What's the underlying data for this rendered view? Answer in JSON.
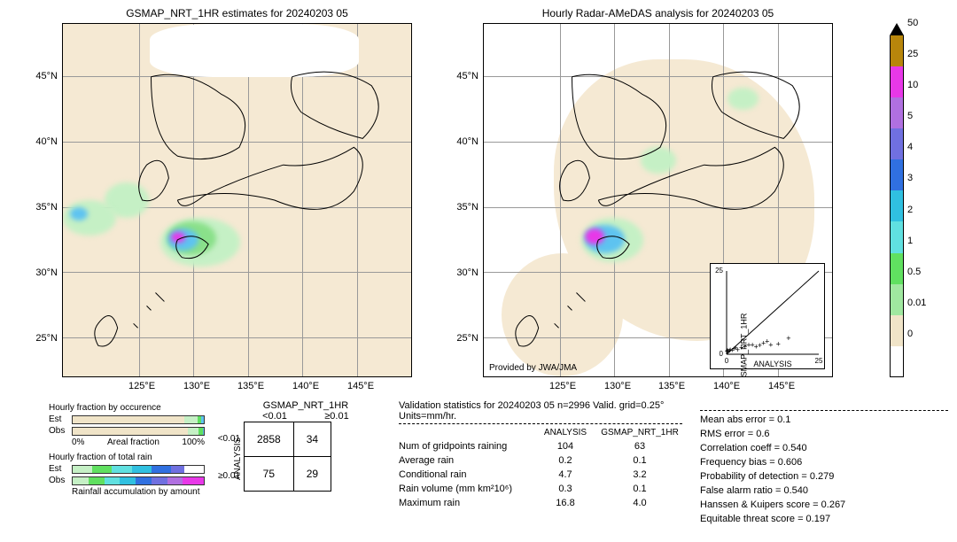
{
  "maps": {
    "left": {
      "title": "GSMAP_NRT_1HR estimates for 20240203 05"
    },
    "right": {
      "title": "Hourly Radar-AMeDAS analysis for 20240203 05",
      "provider": "Provided by JWA/JMA"
    },
    "lat_ticks": [
      "45°N",
      "40°N",
      "35°N",
      "30°N",
      "25°N"
    ],
    "lon_ticks": [
      "125°E",
      "130°E",
      "135°E",
      "140°E",
      "145°E"
    ],
    "xlim": [
      118,
      150
    ],
    "ylim": [
      22,
      49
    ],
    "background_color": "#f5e9d3",
    "grid_color": "#999999",
    "precip_clusters": [
      {
        "lat": 33,
        "lon": 129,
        "size": 60,
        "color": "#8ae08a"
      },
      {
        "lat": 33,
        "lon": 129,
        "size": 40,
        "color": "#5ec3f0"
      },
      {
        "lat": 33.2,
        "lon": 128.8,
        "size": 18,
        "color": "#e838e8"
      },
      {
        "lat": 31,
        "lon": 130,
        "size": 35,
        "color": "#c5f0c5"
      },
      {
        "lat": 34,
        "lon": 132,
        "size": 40,
        "color": "#c5f0c5"
      },
      {
        "lat": 37,
        "lon": 127,
        "size": 30,
        "color": "#c5f0c5"
      }
    ]
  },
  "colorbar": {
    "ticks": [
      "50",
      "25",
      "10",
      "5",
      "4",
      "3",
      "2",
      "1",
      "0.5",
      "0.01",
      "0"
    ],
    "colors": [
      "#b8860b",
      "#e838e8",
      "#b070e0",
      "#7070e0",
      "#3070e0",
      "#30c0e0",
      "#60e0e0",
      "#60e060",
      "#a0e8a0",
      "#f0e4c8",
      "#ffffff"
    ]
  },
  "hourly_fraction": {
    "occurrence": {
      "title": "Hourly fraction by occurence",
      "rows": [
        {
          "label": "Est",
          "segs": [
            {
              "w": 85,
              "c": "#f0e4c8"
            },
            {
              "w": 10,
              "c": "#c5f0c5"
            },
            {
              "w": 3,
              "c": "#60e060"
            },
            {
              "w": 2,
              "c": "#5ec3f0"
            }
          ]
        },
        {
          "label": "Obs",
          "segs": [
            {
              "w": 88,
              "c": "#f0e4c8"
            },
            {
              "w": 8,
              "c": "#c5f0c5"
            },
            {
              "w": 3,
              "c": "#60e060"
            },
            {
              "w": 1,
              "c": "#5ec3f0"
            }
          ]
        }
      ],
      "xaxis_left": "0%",
      "xaxis_right": "100%",
      "xaxis_label": "Areal fraction"
    },
    "total_rain": {
      "title": "Hourly fraction of total rain",
      "rows": [
        {
          "label": "Est",
          "segs": [
            {
              "w": 15,
              "c": "#c5f0c5"
            },
            {
              "w": 15,
              "c": "#60e060"
            },
            {
              "w": 15,
              "c": "#60e0e0"
            },
            {
              "w": 15,
              "c": "#30c0e0"
            },
            {
              "w": 15,
              "c": "#3070e0"
            },
            {
              "w": 10,
              "c": "#7070e0"
            }
          ]
        },
        {
          "label": "Obs",
          "segs": [
            {
              "w": 12,
              "c": "#c5f0c5"
            },
            {
              "w": 12,
              "c": "#60e060"
            },
            {
              "w": 12,
              "c": "#60e0e0"
            },
            {
              "w": 12,
              "c": "#30c0e0"
            },
            {
              "w": 12,
              "c": "#3070e0"
            },
            {
              "w": 12,
              "c": "#7070e0"
            },
            {
              "w": 12,
              "c": "#b070e0"
            },
            {
              "w": 16,
              "c": "#e838e8"
            }
          ]
        }
      ],
      "footer": "Rainfall accumulation by amount"
    }
  },
  "contingency": {
    "col_header": "GSMAP_NRT_1HR",
    "row_header": "ANALYSIS",
    "col_labels": [
      "<0.01",
      "≥0.01"
    ],
    "row_labels": [
      "<0.01",
      "≥0.01"
    ],
    "cells": [
      [
        "2858",
        "34"
      ],
      [
        "75",
        "29"
      ]
    ]
  },
  "validation": {
    "title": "Validation statistics for 20240203 05  n=2996 Valid. grid=0.25°  Units=mm/hr.",
    "col1": "ANALYSIS",
    "col2": "GSMAP_NRT_1HR",
    "rows": [
      {
        "label": "Num of gridpoints raining",
        "v1": "104",
        "v2": "63"
      },
      {
        "label": "Average rain",
        "v1": "0.2",
        "v2": "0.1"
      },
      {
        "label": "Conditional rain",
        "v1": "4.7",
        "v2": "3.2"
      },
      {
        "label": "Rain volume (mm km²10⁶)",
        "v1": "0.3",
        "v2": "0.1"
      },
      {
        "label": "Maximum rain",
        "v1": "16.8",
        "v2": "4.0"
      }
    ]
  },
  "metrics": {
    "rows": [
      {
        "label": "Mean abs error",
        "val": "0.1"
      },
      {
        "label": "RMS error",
        "val": "0.6"
      },
      {
        "label": "Correlation coeff",
        "val": "0.540"
      },
      {
        "label": "Frequency bias",
        "val": "0.606"
      },
      {
        "label": "Probability of detection",
        "val": "0.279"
      },
      {
        "label": "False alarm ratio",
        "val": "0.540"
      },
      {
        "label": "Hanssen & Kuipers score",
        "val": "0.267"
      },
      {
        "label": "Equitable threat score",
        "val": "0.197"
      }
    ]
  },
  "scatter": {
    "xlabel": "ANALYSIS",
    "ylabel": "GSMAP_NRT_1HR",
    "xlim": [
      0,
      25
    ],
    "ylim": [
      0,
      25
    ],
    "ticks": [
      0,
      5,
      10,
      15,
      20,
      25
    ],
    "points": [
      [
        0.2,
        0.1
      ],
      [
        0.3,
        0.2
      ],
      [
        0.5,
        0.1
      ],
      [
        0.8,
        0.3
      ],
      [
        1.0,
        0.5
      ],
      [
        1.5,
        0.4
      ],
      [
        2.0,
        0.8
      ],
      [
        2.5,
        1.0
      ],
      [
        3.0,
        0.5
      ],
      [
        4.0,
        1.2
      ],
      [
        5.0,
        1.5
      ],
      [
        6.0,
        2.0
      ],
      [
        8.0,
        1.5
      ],
      [
        10.0,
        2.5
      ],
      [
        12.0,
        2.0
      ],
      [
        16.8,
        4.0
      ],
      [
        0.1,
        0.1
      ],
      [
        0.2,
        0.3
      ],
      [
        7,
        2
      ],
      [
        9,
        1.8
      ],
      [
        11,
        3
      ],
      [
        14,
        2.2
      ]
    ]
  }
}
